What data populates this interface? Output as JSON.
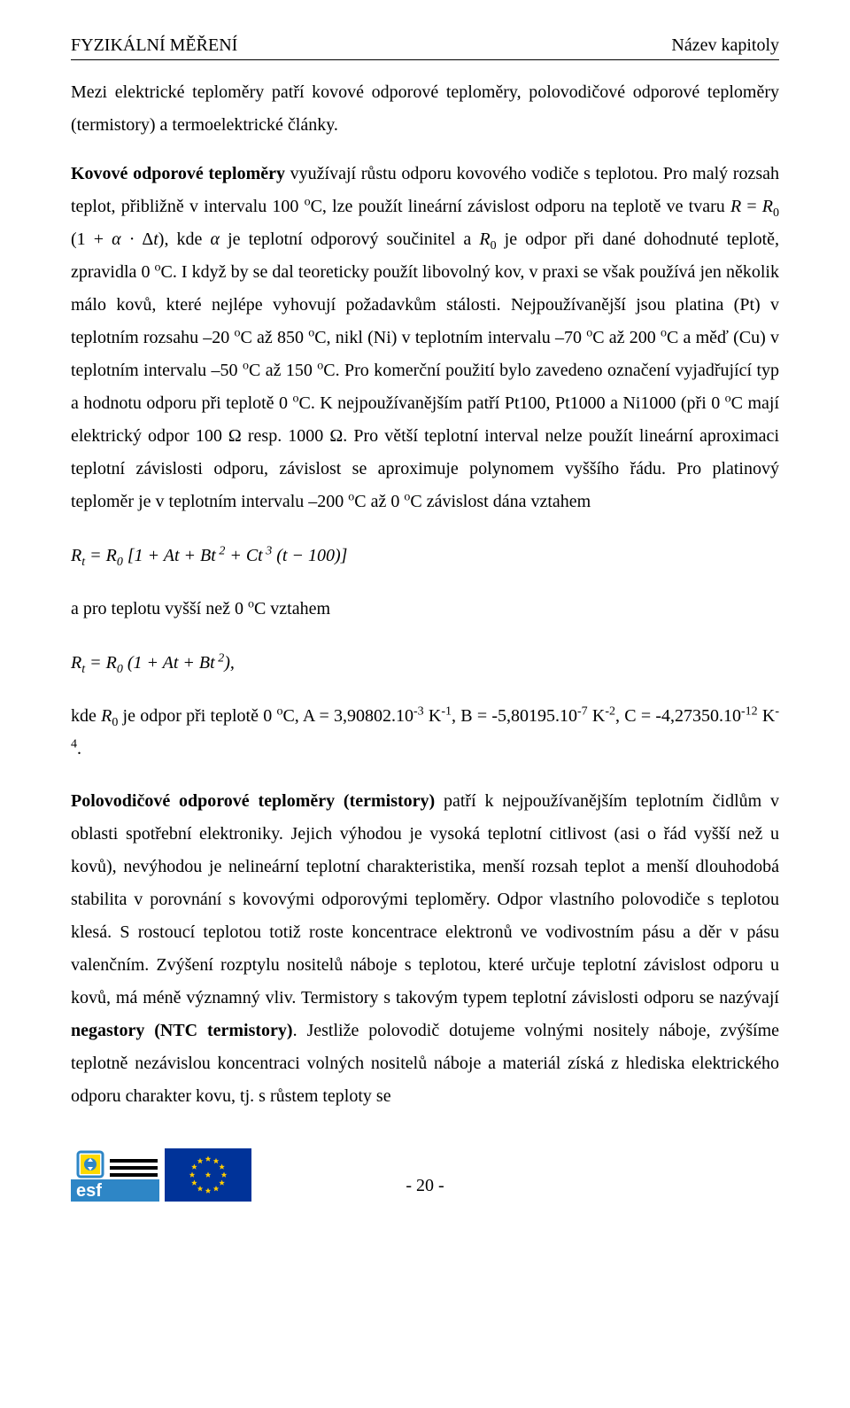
{
  "header": {
    "left": "FYZIKÁLNÍ MĚŘENÍ",
    "right": "Název kapitoly"
  },
  "para1_html": "Mezi elektrické teploměry patří kovové odporové teploměry, polovodičové odporové teploměry (termistory) a termoelektrické články.",
  "para2_html": "<b>Kovové odporové teploměry</b> využívají růstu odporu kovového vodiče s teplotou. Pro malý rozsah teplot, přibližně v intervalu 100 <sup>o</sup>C, lze použít lineární závislost odporu na teplotě ve tvaru <i>R</i> = <i>R</i><sub>0</sub> (1 + <i>α</i> · Δ<i>t</i>), kde <i>α</i> je teplotní odporový součinitel a <i>R</i><sub>0</sub> je odpor při dané dohodnuté teplotě, zpravidla 0 <sup>o</sup>C. I když by se dal teoreticky použít libovolný kov, v praxi se však používá jen několik málo kovů, které nejlépe vyhovují požadavkům stálosti. Nejpoužívanější jsou platina (Pt) v teplotním rozsahu –20 <sup>o</sup>C až 850 <sup>o</sup>C, nikl (Ni) v teplotním intervalu –70 <sup>o</sup>C až 200 <sup>o</sup>C a měď (Cu) v teplotním intervalu –50 <sup>o</sup>C až 150 <sup>o</sup>C. Pro komerční použití bylo zavedeno označení vyjadřující typ a hodnotu odporu při teplotě 0 <sup>o</sup>C. K nejpoužívanějším patří Pt100, Pt1000 a Ni1000 (při 0 <sup>o</sup>C mají elektrický odpor 100 Ω resp. 1000 Ω. Pro větší teplotní interval nelze použít lineární aproximaci teplotní závislosti odporu, závislost se aproximuje polynomem vyššího řádu. Pro platinový teploměr je v teplotním intervalu –200 <sup>o</sup>C až 0 <sup>o</sup>C závislost dána vztahem",
  "eq1_html": "<i>R<sub>t</sub></i> = <i>R</i><sub>0</sub> [1 + <i>At</i> + <i>Bt</i><sup> 2</sup> + <i>Ct</i><sup> 3</sup> (<i>t</i> − 100)]",
  "para3_html": "a pro teplotu vyšší než 0 <sup>o</sup>C vztahem",
  "eq2_html": "<i>R<sub>t</sub></i> = <i>R</i><sub>0</sub> (1 + <i>At</i> + <i>Bt</i><sup> 2</sup>),",
  "para4_html": "kde <i>R</i><sub>0</sub> je odpor při teplotě 0 <sup>o</sup>C, A = 3,90802.10<sup>-3</sup> K<sup>-1</sup>, B = -5,80195.10<sup>-7</sup> K<sup>-2</sup>, C = -4,27350.10<sup>-12</sup> K<sup>-4</sup>.",
  "para5_html": "<b>Polovodičové odporové teploměry (termistory)</b> patří k nejpoužívanějším teplotním čidlům v oblasti spotřební elektroniky. Jejich výhodou je vysoká teplotní citlivost (asi o řád vyšší než u kovů), nevýhodou je nelineární teplotní charakteristika, menší rozsah teplot a menší dlouhodobá stabilita v porovnání s kovovými odporovými teploměry. Odpor vlastního polovodiče s teplotou klesá. S rostoucí teplotou totiž roste koncentrace elektronů ve vodivostním pásu a děr v pásu valenčním. Zvýšení rozptylu nositelů náboje s teplotou, které určuje teplotní závislost odporu u kovů, má méně významný vliv. Termistory s takovým typem teplotní závislosti odporu se nazývají <b>negastory (NTC termistory)</b>. Jestliže polovodič dotujeme volnými nositely náboje, zvýšíme teplotně nezávislou koncentraci volných nositelů náboje a materiál získá z hlediska elektrického odporu charakter kovu, tj. s růstem teploty se",
  "footer": {
    "page_number": "- 20 -",
    "logo": {
      "name": "esf",
      "colors": {
        "blue": "#2e86c6",
        "yellow": "#fcd900",
        "black": "#000000",
        "white": "#ffffff"
      }
    },
    "flag": {
      "name": "eu-flag",
      "colors": {
        "blue": "#003399",
        "yellow": "#ffcc00"
      }
    }
  }
}
